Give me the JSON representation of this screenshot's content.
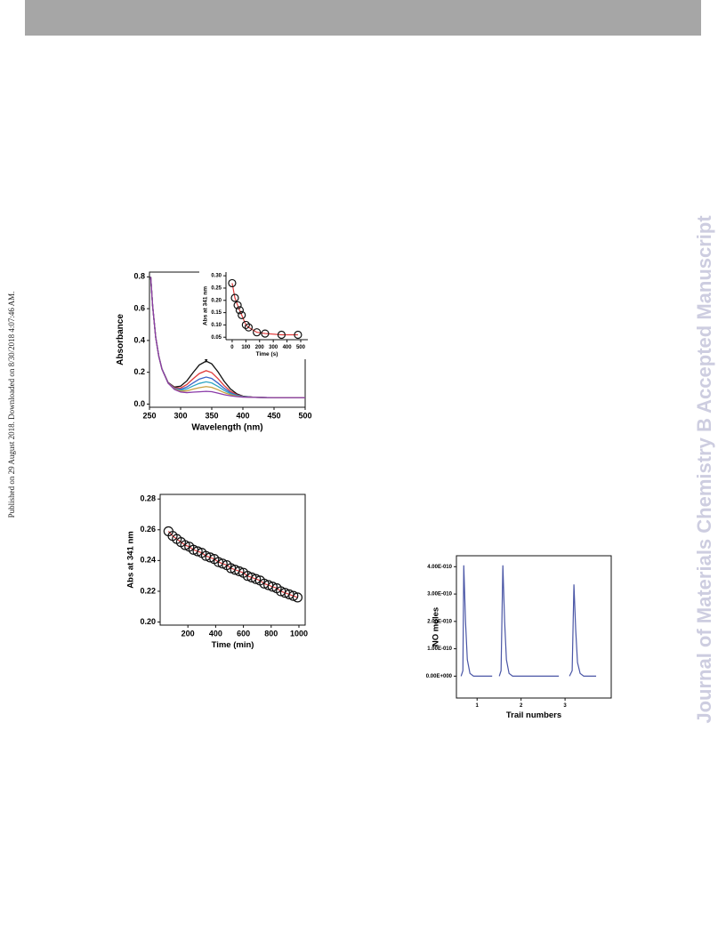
{
  "side_note": "Published on 29 August 2018. Downloaded on 8/30/2018 4:07:46 AM.",
  "watermark": "Journal of Materials Chemistry B Accepted Manuscript",
  "chart_data": [
    {
      "type": "line",
      "x_label": "Wavelength (nm)",
      "y_label": "Absorbance",
      "x": [
        252,
        255,
        260,
        265,
        270,
        280,
        290,
        300,
        310,
        320,
        330,
        341,
        350,
        360,
        370,
        380,
        390,
        400,
        420,
        450,
        500
      ],
      "series": [
        {
          "color": "#111111",
          "values": [
            0.8,
            0.62,
            0.42,
            0.301,
            0.222,
            0.136,
            0.107,
            0.113,
            0.146,
            0.198,
            0.246,
            0.27,
            0.253,
            0.203,
            0.143,
            0.095,
            0.065,
            0.05,
            0.042,
            0.04,
            0.04
          ]
        },
        {
          "color": "#e03a3a",
          "values": [
            0.8,
            0.62,
            0.42,
            0.301,
            0.221,
            0.134,
            0.103,
            0.101,
            0.123,
            0.159,
            0.192,
            0.21,
            0.198,
            0.16,
            0.116,
            0.081,
            0.059,
            0.048,
            0.042,
            0.04,
            0.04
          ]
        },
        {
          "color": "#3a62c8",
          "values": [
            0.8,
            0.62,
            0.42,
            0.3,
            0.221,
            0.133,
            0.099,
            0.093,
            0.107,
            0.133,
            0.157,
            0.17,
            0.161,
            0.132,
            0.099,
            0.072,
            0.056,
            0.047,
            0.042,
            0.04,
            0.04
          ]
        },
        {
          "color": "#2fa6c4",
          "values": [
            0.8,
            0.62,
            0.42,
            0.3,
            0.221,
            0.132,
            0.097,
            0.087,
            0.095,
            0.114,
            0.13,
            0.14,
            0.133,
            0.111,
            0.086,
            0.065,
            0.053,
            0.046,
            0.042,
            0.04,
            0.04
          ]
        },
        {
          "color": "#c8a040",
          "values": [
            0.8,
            0.62,
            0.42,
            0.3,
            0.22,
            0.132,
            0.095,
            0.082,
            0.083,
            0.094,
            0.103,
            0.11,
            0.105,
            0.09,
            0.072,
            0.059,
            0.05,
            0.045,
            0.042,
            0.04,
            0.04
          ]
        },
        {
          "color": "#8a3aa8",
          "values": [
            0.8,
            0.62,
            0.42,
            0.3,
            0.22,
            0.131,
            0.092,
            0.076,
            0.072,
            0.075,
            0.077,
            0.08,
            0.078,
            0.069,
            0.059,
            0.052,
            0.047,
            0.044,
            0.042,
            0.04,
            0.04
          ]
        }
      ],
      "xlim": [
        250,
        500
      ],
      "xticks": [
        250,
        300,
        350,
        400,
        450,
        500
      ],
      "ylim": [
        -0.02,
        0.83
      ],
      "yticks": [
        {
          "value": 0,
          "label": "0.0"
        },
        {
          "value": 0.2,
          "label": "0.2"
        },
        {
          "value": 0.4,
          "label": "0.4"
        },
        {
          "value": 0.6,
          "label": "0.6"
        },
        {
          "value": 0.8,
          "label": "0.8"
        }
      ],
      "frame": true
    },
    {
      "type": "scatter",
      "x_label": "Time (s)",
      "y_label": "Abs at 341 nm",
      "x": [
        0,
        20,
        40,
        55,
        70,
        100,
        120,
        180,
        240,
        360,
        480
      ],
      "series": [
        {
          "color": "#111111",
          "line_color": "#e03a3a",
          "values": [
            0.27,
            0.21,
            0.18,
            0.16,
            0.14,
            0.1,
            0.09,
            0.07,
            0.065,
            0.06,
            0.06
          ]
        }
      ],
      "xlim": [
        -45,
        552
      ],
      "xticks": [
        0,
        100,
        200,
        300,
        400,
        500
      ],
      "ylim": [
        0.04,
        0.315
      ],
      "yticks": [
        {
          "value": 0.05,
          "label": "0.05"
        },
        {
          "value": 0.1,
          "label": "0.10"
        },
        {
          "value": 0.15,
          "label": "0.15"
        },
        {
          "value": 0.2,
          "label": "0.20"
        },
        {
          "value": 0.25,
          "label": "0.25"
        },
        {
          "value": 0.3,
          "label": "0.30"
        }
      ],
      "frame": false
    },
    {
      "type": "scatter",
      "x_label": "Time (min)",
      "y_label": "Abs at 341 nm",
      "x": [
        60,
        90,
        120,
        150,
        180,
        210,
        240,
        270,
        300,
        330,
        360,
        390,
        420,
        450,
        480,
        510,
        540,
        570,
        600,
        630,
        660,
        690,
        720,
        750,
        780,
        810,
        840,
        870,
        900,
        930,
        960,
        990
      ],
      "series": [
        {
          "color": "#111111",
          "line_color": "#e03a3a",
          "values": [
            0.259,
            0.256,
            0.254,
            0.252,
            0.25,
            0.249,
            0.247,
            0.246,
            0.245,
            0.243,
            0.242,
            0.241,
            0.239,
            0.238,
            0.237,
            0.235,
            0.234,
            0.233,
            0.232,
            0.23,
            0.229,
            0.228,
            0.227,
            0.225,
            0.224,
            0.223,
            0.222,
            0.22,
            0.219,
            0.218,
            0.217,
            0.216
          ]
        }
      ],
      "xlim": [
        0,
        1045
      ],
      "xticks": [
        200,
        400,
        600,
        800,
        1000
      ],
      "ylim": [
        0.198,
        0.283
      ],
      "yticks": [
        {
          "value": 0.2,
          "label": "0.20"
        },
        {
          "value": 0.22,
          "label": "0.22"
        },
        {
          "value": 0.24,
          "label": "0.24"
        },
        {
          "value": 0.26,
          "label": "0.26"
        },
        {
          "value": 0.28,
          "label": "0.28"
        }
      ],
      "frame": true
    },
    {
      "type": "line",
      "x_label": "Trail numbers",
      "y_label": "NO moles",
      "x": [
        0.636,
        0.677,
        0.697,
        0.737,
        0.778,
        0.838,
        0.919,
        1.343,
        null,
        1.505,
        1.545,
        1.586,
        1.626,
        1.667,
        1.727,
        1.808,
        2.859,
        null,
        3.101,
        3.162,
        3.202,
        3.242,
        3.283,
        3.343,
        3.424,
        3.707
      ],
      "series": [
        {
          "color": "#4a56a6",
          "values": [
            0,
            2e-11,
            4.05e-10,
            2e-10,
            6e-11,
            1e-11,
            0,
            0,
            null,
            0,
            2e-11,
            4.05e-10,
            2e-10,
            6e-11,
            1e-11,
            0,
            0,
            null,
            0,
            2e-11,
            3.35e-10,
            1.7e-10,
            5e-11,
            1e-11,
            0,
            0
          ]
        }
      ],
      "xlim": [
        0.53,
        4.05
      ],
      "xticks": [
        1,
        2,
        3
      ],
      "ylim": [
        -8e-11,
        4.4e-10
      ],
      "yticks": [
        {
          "value": 0,
          "label": "0.00E+000"
        },
        {
          "value": 1e-10,
          "label": "1.00E-010"
        },
        {
          "value": 2e-10,
          "label": "2.00E-010"
        },
        {
          "value": 3e-10,
          "label": "3.00E-010"
        },
        {
          "value": 4e-10,
          "label": "4.00E-010"
        }
      ],
      "frame": true
    }
  ]
}
